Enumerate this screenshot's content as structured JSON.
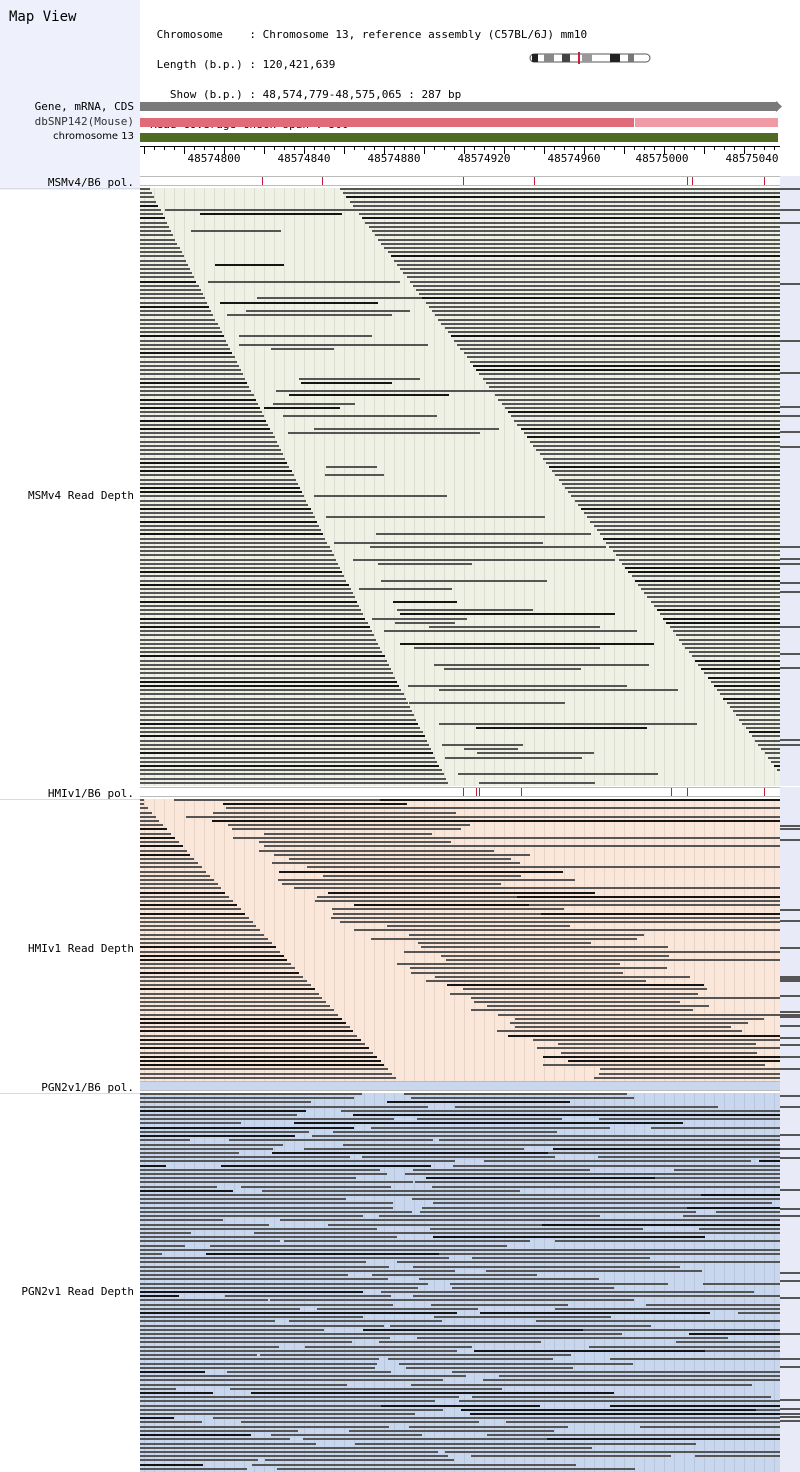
{
  "header": {
    "title": "Map View",
    "info_lines": [
      " Chromosome    : Chromosome 13, reference assembly (C57BL/6J) mm10",
      " Length (b.p.) : 120,421,639",
      "   Show (b.p.) : 48,574,779-48,575,065 : 287 bp",
      "Read coverage check span : 500"
    ]
  },
  "tracks": {
    "gene_label": "Gene, mRNA, CDS",
    "dbsnp_label": "dbSNP142(Mouse)",
    "chrom_label": "chromosome 13"
  },
  "ruler": {
    "ticks": [
      "48574800",
      "48574840",
      "48574880",
      "48574920",
      "48574960",
      "48575000",
      "48575040"
    ]
  },
  "strains": [
    {
      "pol_label": "MSMv4/B6 pol.",
      "depth_label": "MSMv4 Read Depth",
      "color": "#eef1e4",
      "snps": [
        0.19,
        0.285,
        0.505,
        0.615,
        0.855,
        0.862,
        0.975
      ]
    },
    {
      "pol_label": "HMIv1/B6 pol.",
      "depth_label": "HMIv1 Read Depth",
      "color": "#fbe6da",
      "snps": [
        0.505,
        0.525,
        0.53,
        0.595,
        0.83,
        0.855,
        0.975
      ]
    },
    {
      "pol_label": "PGN2v1/B6 pol.",
      "depth_label": "PGN2v1 Read Depth",
      "color": "#c8d7ee",
      "snps": []
    }
  ],
  "colors": {
    "gene_bar": "#7a7a7a",
    "dbsnp_bar": "#e06a78",
    "dbsnp_bar_light": "#ef9aa4",
    "chrom_bar": "#4f6a22",
    "read_dark": "#555555",
    "read_black": "#151515",
    "left_header_bg": "#eef0fb"
  }
}
